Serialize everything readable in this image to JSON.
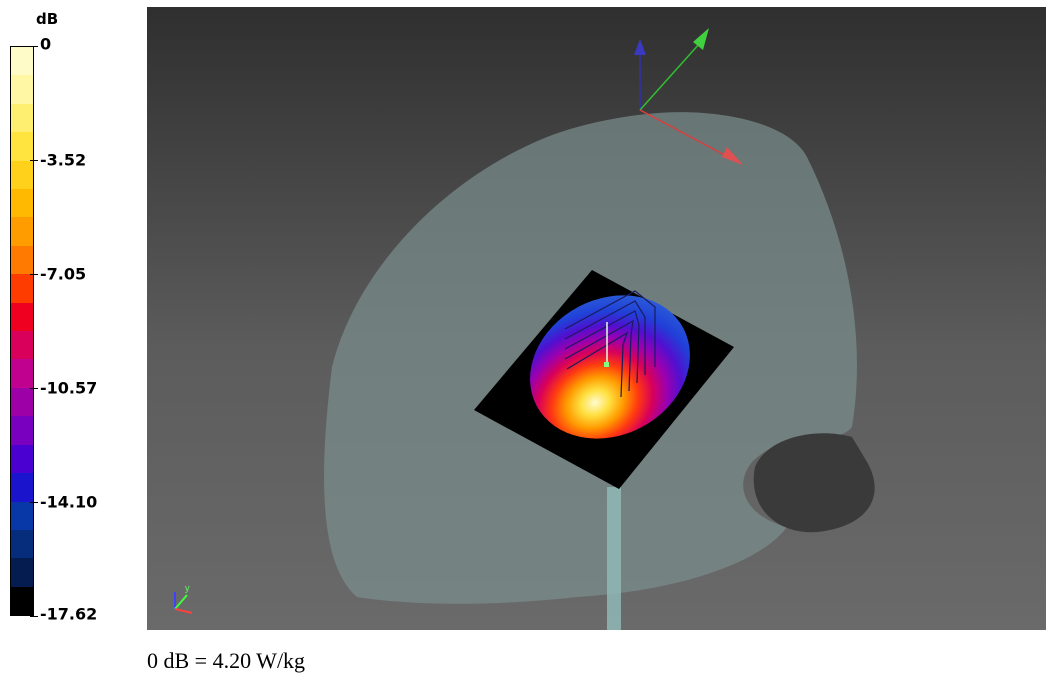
{
  "legend": {
    "unit": "dB",
    "ticks": [
      "0",
      "-3.52",
      "-7.05",
      "-10.57",
      "-14.10",
      "-17.62"
    ],
    "colors": [
      "#fffbc9",
      "#fff7a3",
      "#ffef70",
      "#ffe33e",
      "#ffd11b",
      "#ffb900",
      "#ff9d00",
      "#ff7a00",
      "#ff3c00",
      "#f00020",
      "#d8005a",
      "#c0008e",
      "#9e00a8",
      "#7a00c0",
      "#4a00d0",
      "#1a14cc",
      "#0838a8",
      "#062c7c",
      "#041c50",
      "#000000"
    ]
  },
  "viewport": {
    "background": "#5a5a5a",
    "phantom_color": "#6f8280",
    "axes": {
      "x": "#d84040",
      "y": "#30c030",
      "z": "#3030b0"
    }
  },
  "footer": {
    "text": "0 dB = 4.20 W/kg"
  }
}
